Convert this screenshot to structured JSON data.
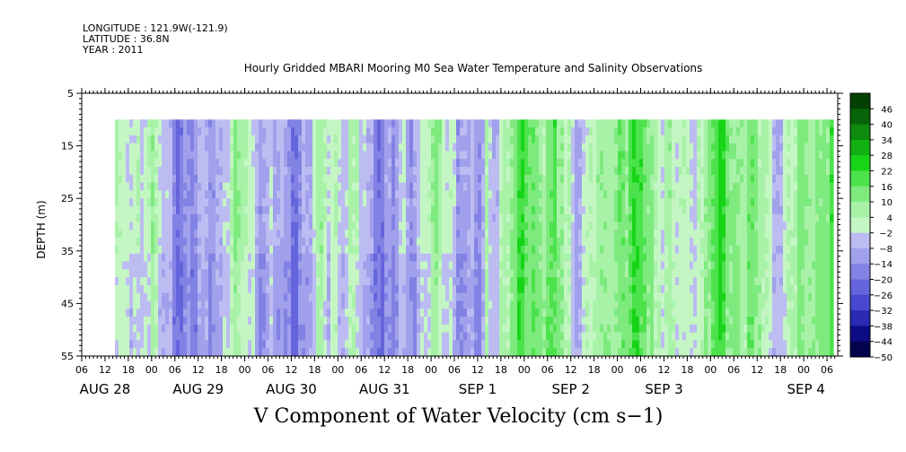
{
  "header": {
    "longitude": "LONGITUDE : 121.9W(-121.9)",
    "latitude": "LATITUDE : 36.8N",
    "year": "YEAR : 2011"
  },
  "chart_data": {
    "type": "heatmap",
    "title": "Hourly Gridded MBARI Mooring M0 Sea Water Temperature and Salinity Observations",
    "xlabel": "V Component of Water Velocity (cm s−1)",
    "ylabel": "DEPTH (m)",
    "y_ticks": [
      5,
      15,
      25,
      35,
      45,
      55
    ],
    "ylim": [
      5,
      55
    ],
    "y_inverted": true,
    "data_depth_range": [
      10,
      55
    ],
    "x_hour_ticks": [
      "06",
      "12",
      "18",
      "00",
      "06",
      "12",
      "18",
      "00",
      "06",
      "12",
      "18",
      "00",
      "06",
      "12",
      "18",
      "00",
      "06",
      "12",
      "18",
      "00",
      "06",
      "12",
      "18",
      "00",
      "06",
      "12",
      "18",
      "00",
      "06",
      "12",
      "18",
      "00",
      "06"
    ],
    "x_day_labels": [
      "AUG 28",
      "AUG 29",
      "AUG 30",
      "AUG 31",
      "SEP  1",
      "SEP  2",
      "SEP  3",
      "SEP  4"
    ],
    "colorbar": {
      "levels": [
        46,
        40,
        34,
        28,
        22,
        16,
        10,
        4,
        -2,
        -8,
        -14,
        -20,
        -26,
        -32,
        -38,
        -44,
        -50
      ],
      "range": [
        -50,
        52
      ],
      "colors_low_to_high": [
        "#02024f",
        "#0b0b86",
        "#2a2ab4",
        "#4747d0",
        "#6464dc",
        "#8282e4",
        "#a0a0ec",
        "#bcbcf2",
        "#c4f6c4",
        "#a8f2a8",
        "#7eea7e",
        "#4ce24c",
        "#18d418",
        "#12b012",
        "#0e8a0e",
        "#086408",
        "#044004"
      ]
    },
    "pattern_summary": {
      "before_aug31_1800": "predominantly weak negative (-2 to -14) with alternating weak positive bands (+4 to +16)",
      "after_aug31_1800": "predominantly positive (+4 to +22) with scattered weak negative bands",
      "min_approx": -26,
      "max_approx": 22
    }
  }
}
